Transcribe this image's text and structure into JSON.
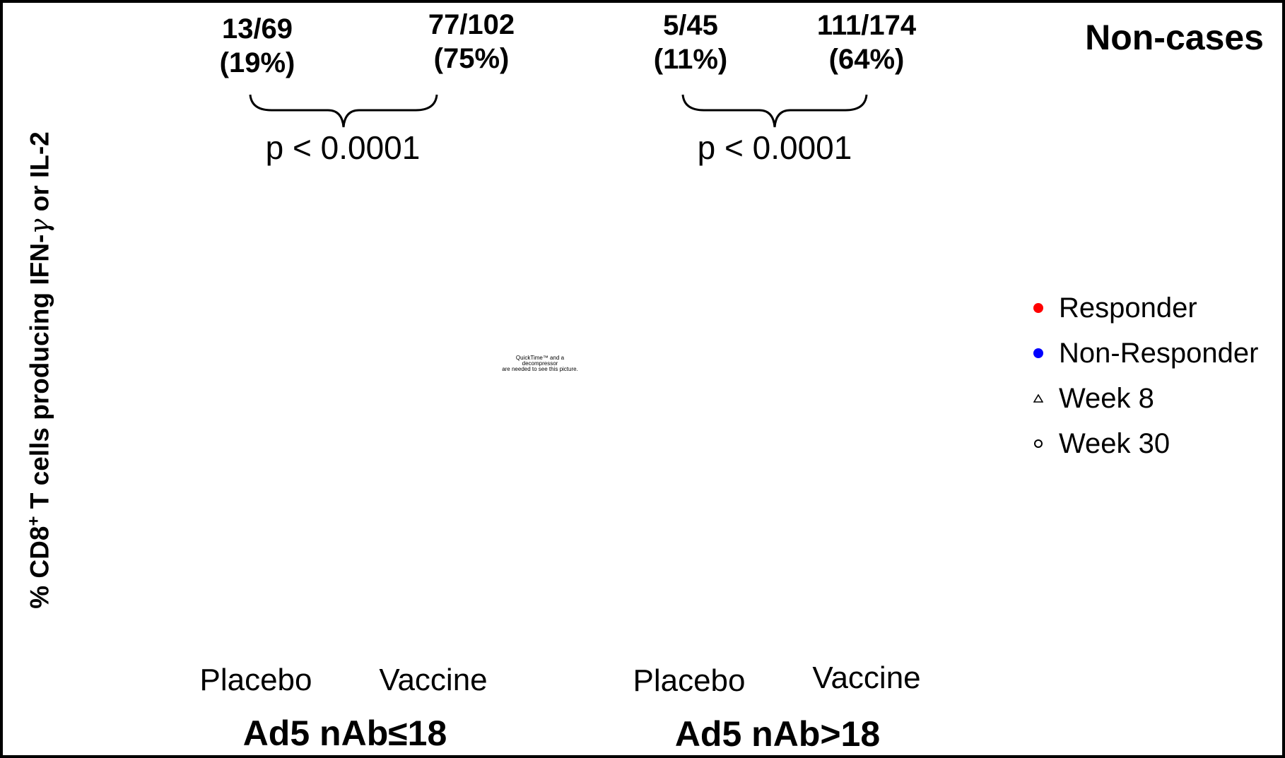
{
  "chart_data": {
    "type": "table",
    "title": "Non-cases",
    "ylabel": "% CD8+ T cells producing IFN-γ or IL-2",
    "groups": [
      {
        "label": "Ad5 nAb≤18",
        "p_value": "p < 0.0001",
        "arms": [
          {
            "label": "Placebo",
            "count": "13/69",
            "percent": "(19%)",
            "responders": 13,
            "total": 69
          },
          {
            "label": "Vaccine",
            "count": "77/102",
            "percent": "(75%)",
            "responders": 77,
            "total": 102
          }
        ]
      },
      {
        "label": "Ad5 nAb>18",
        "p_value": "p < 0.0001",
        "arms": [
          {
            "label": "Placebo",
            "count": "5/45",
            "percent": "(11%)",
            "responders": 5,
            "total": 45
          },
          {
            "label": "Vaccine",
            "count": "111/174",
            "percent": "(64%)",
            "responders": 111,
            "total": 174
          }
        ]
      }
    ],
    "legend": [
      {
        "label": "Responder",
        "marker": "filled-circle",
        "color": "#ff0000"
      },
      {
        "label": "Non-Responder",
        "marker": "filled-circle",
        "color": "#0000ff"
      },
      {
        "label": "Week 8",
        "marker": "open-triangle",
        "color": "#000000"
      },
      {
        "label": "Week 30",
        "marker": "open-circle",
        "color": "#000000"
      }
    ],
    "legend_position": "right"
  },
  "placeholder": {
    "line1": "QuickTime™ and a",
    "line2": "decompressor",
    "line3": "are needed to see this picture."
  }
}
